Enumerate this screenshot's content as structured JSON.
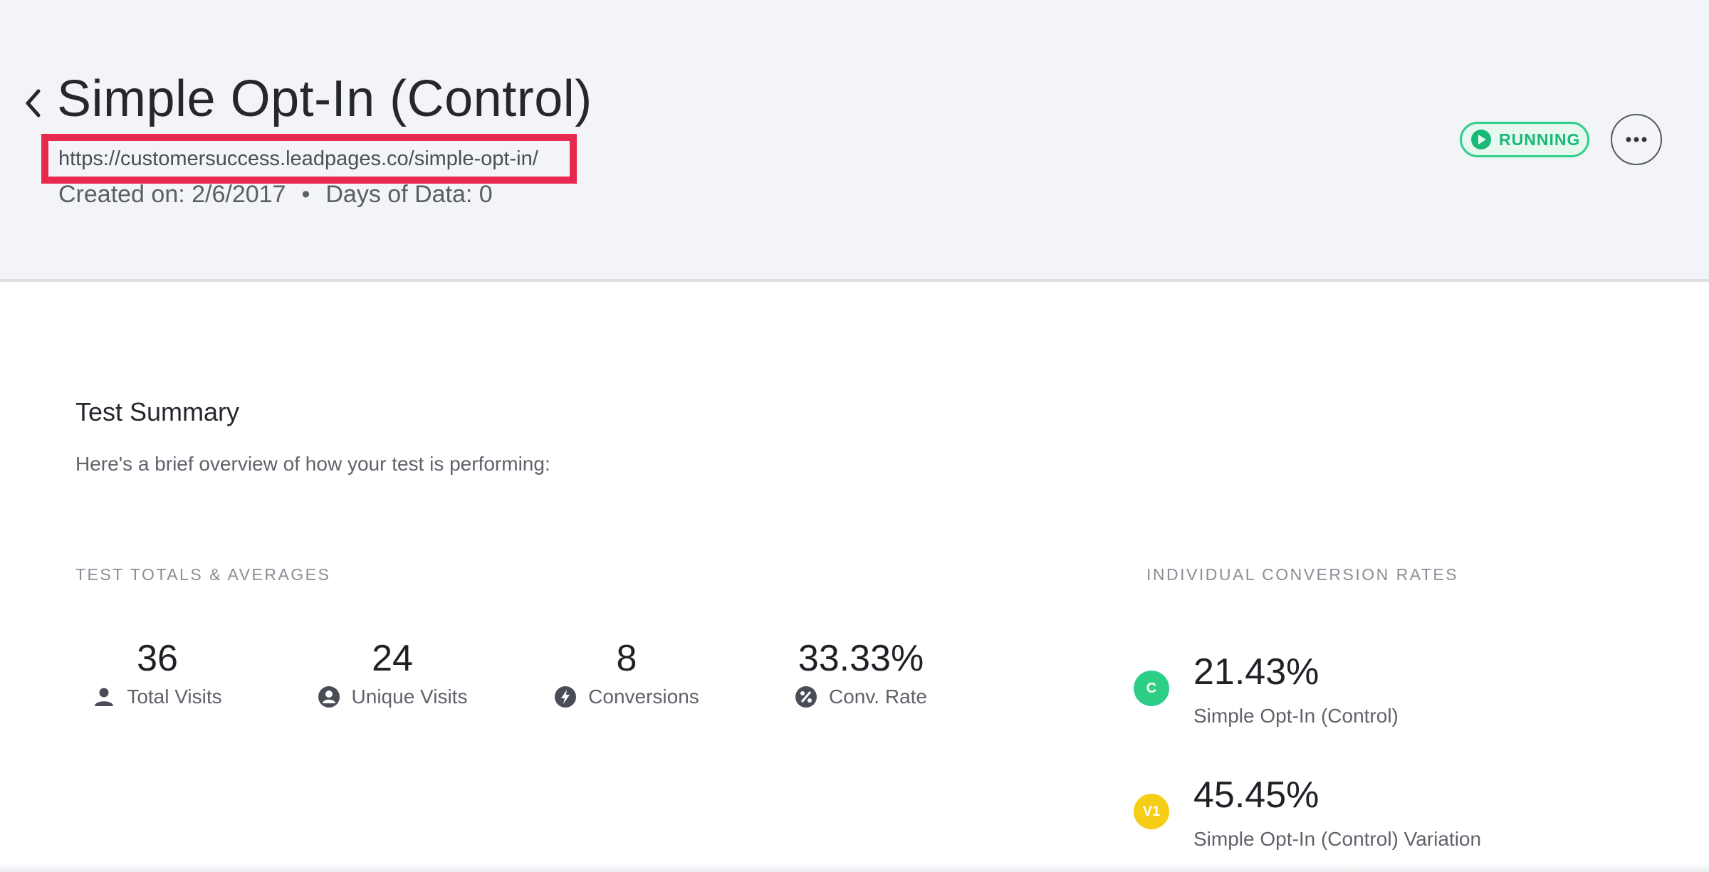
{
  "header": {
    "title": "Simple Opt-In (Control)",
    "url": "https://customersuccess.leadpages.co/simple-opt-in/",
    "created_on": "Created on: 2/6/2017",
    "separator": "•",
    "days_of_data": "Days of Data: 0",
    "status": "RUNNING",
    "accent_color": "#e8294f",
    "status_color": "#19b977"
  },
  "summary": {
    "title": "Test Summary",
    "description": "Here's a brief overview of how your test is performing:"
  },
  "totals": {
    "label": "TEST TOTALS & AVERAGES",
    "stats": [
      {
        "value": "36",
        "label": "Total Visits",
        "icon": "person-icon"
      },
      {
        "value": "24",
        "label": "Unique Visits",
        "icon": "user-circle-icon"
      },
      {
        "value": "8",
        "label": "Conversions",
        "icon": "bolt-icon"
      },
      {
        "value": "33.33%",
        "label": "Conv. Rate",
        "icon": "percent-icon"
      }
    ]
  },
  "rates": {
    "label": "INDIVIDUAL CONVERSION RATES",
    "items": [
      {
        "badge": "C",
        "value": "21.43%",
        "name": "Simple Opt-In (Control)",
        "color": "#2dcf86"
      },
      {
        "badge": "V1",
        "value": "45.45%",
        "name": "Simple Opt-In (Control) Variation",
        "color": "#f6cd17"
      }
    ]
  }
}
